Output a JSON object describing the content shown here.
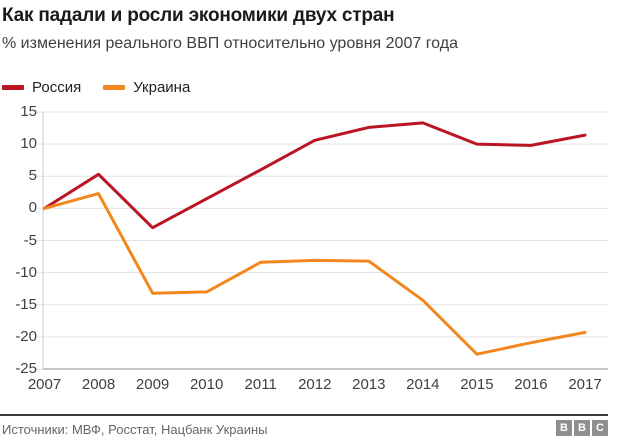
{
  "header": {
    "title": "Как падали и росли экономики двух стран",
    "subtitle": "% изменения реального ВВП относительно уровня 2007 года"
  },
  "footer": {
    "source": "Источники: МВФ, Росстат, Нацбанк Украины",
    "logo_letters": [
      "B",
      "B",
      "C"
    ]
  },
  "colors": {
    "russia_line": "#bb1423",
    "ukraine_line": "#f2871d",
    "gridline": "#e3e3e3",
    "axis_line": "#cccccc",
    "baseline": "#b3b3b3",
    "title_text": "#1a1a1a",
    "subtitle_text": "#404040",
    "axis_text": "#404040",
    "source_text": "#666666",
    "logo_block": "#8f8f8f"
  },
  "chart_data": {
    "type": "line",
    "title": "Как падали и росли экономики двух стран",
    "subtitle": "% изменения реального ВВП относительно уровня 2007 года",
    "categories": [
      "2007",
      "2008",
      "2009",
      "2010",
      "2011",
      "2012",
      "2013",
      "2014",
      "2015",
      "2016",
      "2017"
    ],
    "series": [
      {
        "name": "Россия",
        "color": "#bb1423",
        "values": [
          0,
          5.3,
          -3.0,
          1.5,
          6.0,
          10.6,
          12.6,
          13.3,
          10.0,
          9.8,
          11.4
        ]
      },
      {
        "name": "Украина",
        "color": "#f2871d",
        "values": [
          0,
          2.3,
          -13.2,
          -13.0,
          -8.4,
          -8.1,
          -8.2,
          -14.3,
          -22.7,
          -20.9,
          -19.3
        ]
      }
    ],
    "ylim": [
      -25,
      15
    ],
    "y_ticks": [
      15,
      10,
      5,
      0,
      -5,
      -10,
      -15,
      -20,
      -25
    ],
    "grid": true,
    "legend_position": "top-left",
    "source": "Источники: МВФ, Росстат, Нацбанк Украины"
  }
}
